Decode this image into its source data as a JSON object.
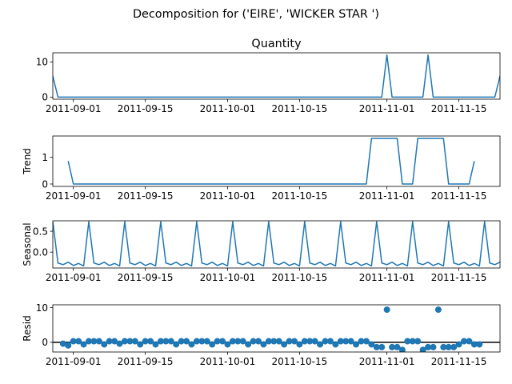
{
  "chart_data": {
    "type": "line",
    "title": "Decomposition for ('EIRE', 'WICKER STAR ')",
    "x_start": "2011-08-28",
    "x_end": "2011-11-23",
    "xticks": [
      "2011-09-01",
      "2011-09-15",
      "2011-10-01",
      "2011-10-15",
      "2011-11-01",
      "2011-11-15"
    ],
    "panels": [
      {
        "id": "observed",
        "type": "line",
        "subtitle": "Quantity",
        "ylabel": "",
        "ylim": [
          -0.6,
          12.6
        ],
        "yticks": [
          0,
          10
        ],
        "color": "#1f77b4",
        "points": [
          [
            "2011-08-28",
            6
          ],
          [
            "2011-08-29",
            0
          ],
          [
            "2011-10-31",
            0
          ],
          [
            "2011-11-01",
            12
          ],
          [
            "2011-11-02",
            0
          ],
          [
            "2011-11-08",
            0
          ],
          [
            "2011-11-09",
            12
          ],
          [
            "2011-11-10",
            0
          ],
          [
            "2011-11-22",
            0
          ],
          [
            "2011-11-23",
            6
          ]
        ]
      },
      {
        "id": "trend",
        "type": "line",
        "subtitle": "",
        "ylabel": "Trend",
        "ylim": [
          -0.09,
          1.8
        ],
        "yticks": [
          0,
          1
        ],
        "color": "#1f77b4",
        "points": [
          [
            "2011-08-31",
            0.86
          ],
          [
            "2011-09-01",
            0
          ],
          [
            "2011-10-28",
            0
          ],
          [
            "2011-10-29",
            1.71
          ],
          [
            "2011-11-03",
            1.71
          ],
          [
            "2011-11-04",
            0
          ],
          [
            "2011-11-06",
            0
          ],
          [
            "2011-11-07",
            1.71
          ],
          [
            "2011-11-12",
            1.71
          ],
          [
            "2011-11-13",
            0
          ],
          [
            "2011-11-17",
            0
          ],
          [
            "2011-11-18",
            0.86
          ]
        ]
      },
      {
        "id": "seasonal",
        "type": "line",
        "subtitle": "",
        "ylabel": "Seasonal",
        "ylim": [
          -0.38,
          0.75
        ],
        "yticks": [
          0.5,
          0.0
        ],
        "ytick_labels": [
          "0.5",
          "0.0"
        ],
        "color": "#1f77b4",
        "period_days": 7,
        "pattern": [
          0.73,
          -0.26,
          -0.3,
          -0.24,
          -0.32,
          -0.27,
          -0.33
        ]
      },
      {
        "id": "resid",
        "type": "scatter",
        "subtitle": "",
        "ylabel": "Resid",
        "ylim": [
          -2.8,
          10.8
        ],
        "yticks": [
          0,
          10
        ],
        "color": "#1f77b4",
        "baseline": 0,
        "points": [
          [
            "2011-08-30",
            -0.4
          ],
          [
            "2011-08-31",
            -0.9
          ],
          [
            "2011-09-01",
            0.3
          ],
          [
            "2011-09-02",
            0.3
          ],
          [
            "2011-09-03",
            -0.6
          ],
          [
            "2011-09-04",
            0.3
          ],
          [
            "2011-09-05",
            0.3
          ],
          [
            "2011-09-06",
            0.3
          ],
          [
            "2011-09-07",
            -0.6
          ],
          [
            "2011-09-08",
            0.3
          ],
          [
            "2011-09-09",
            0.3
          ],
          [
            "2011-09-10",
            -0.4
          ],
          [
            "2011-09-11",
            0.3
          ],
          [
            "2011-09-12",
            0.3
          ],
          [
            "2011-09-13",
            0.3
          ],
          [
            "2011-09-14",
            -0.6
          ],
          [
            "2011-09-15",
            0.3
          ],
          [
            "2011-09-16",
            0.3
          ],
          [
            "2011-09-17",
            -0.6
          ],
          [
            "2011-09-18",
            0.3
          ],
          [
            "2011-09-19",
            0.3
          ],
          [
            "2011-09-20",
            0.3
          ],
          [
            "2011-09-21",
            -0.6
          ],
          [
            "2011-09-22",
            0.3
          ],
          [
            "2011-09-23",
            0.3
          ],
          [
            "2011-09-24",
            -0.6
          ],
          [
            "2011-09-25",
            0.3
          ],
          [
            "2011-09-26",
            0.3
          ],
          [
            "2011-09-27",
            0.3
          ],
          [
            "2011-09-28",
            -0.6
          ],
          [
            "2011-09-29",
            0.3
          ],
          [
            "2011-09-30",
            0.3
          ],
          [
            "2011-10-01",
            -0.6
          ],
          [
            "2011-10-02",
            0.3
          ],
          [
            "2011-10-03",
            0.3
          ],
          [
            "2011-10-04",
            0.3
          ],
          [
            "2011-10-05",
            -0.6
          ],
          [
            "2011-10-06",
            0.3
          ],
          [
            "2011-10-07",
            0.3
          ],
          [
            "2011-10-08",
            -0.6
          ],
          [
            "2011-10-09",
            0.3
          ],
          [
            "2011-10-10",
            0.3
          ],
          [
            "2011-10-11",
            0.3
          ],
          [
            "2011-10-12",
            -0.6
          ],
          [
            "2011-10-13",
            0.3
          ],
          [
            "2011-10-14",
            0.3
          ],
          [
            "2011-10-15",
            -0.6
          ],
          [
            "2011-10-16",
            0.3
          ],
          [
            "2011-10-17",
            0.3
          ],
          [
            "2011-10-18",
            0.3
          ],
          [
            "2011-10-19",
            -0.6
          ],
          [
            "2011-10-20",
            0.3
          ],
          [
            "2011-10-21",
            0.3
          ],
          [
            "2011-10-22",
            -0.6
          ],
          [
            "2011-10-23",
            0.3
          ],
          [
            "2011-10-24",
            0.3
          ],
          [
            "2011-10-25",
            0.3
          ],
          [
            "2011-10-26",
            -0.6
          ],
          [
            "2011-10-27",
            0.3
          ],
          [
            "2011-10-28",
            0.3
          ],
          [
            "2011-10-29",
            -0.6
          ],
          [
            "2011-10-30",
            -1.4
          ],
          [
            "2011-10-31",
            -1.4
          ],
          [
            "2011-11-01",
            9.4
          ],
          [
            "2011-11-02",
            -1.4
          ],
          [
            "2011-11-03",
            -1.4
          ],
          [
            "2011-11-04",
            -2.2
          ],
          [
            "2011-11-05",
            0.3
          ],
          [
            "2011-11-06",
            0.3
          ],
          [
            "2011-11-07",
            0.3
          ],
          [
            "2011-11-08",
            -2.2
          ],
          [
            "2011-11-09",
            -1.4
          ],
          [
            "2011-11-10",
            -1.4
          ],
          [
            "2011-11-11",
            9.4
          ],
          [
            "2011-11-12",
            -1.4
          ],
          [
            "2011-11-13",
            -1.4
          ],
          [
            "2011-11-14",
            -1.4
          ],
          [
            "2011-11-15",
            -0.6
          ],
          [
            "2011-11-16",
            0.3
          ],
          [
            "2011-11-17",
            0.3
          ],
          [
            "2011-11-18",
            -0.6
          ],
          [
            "2011-11-19",
            -0.6
          ]
        ]
      }
    ]
  }
}
